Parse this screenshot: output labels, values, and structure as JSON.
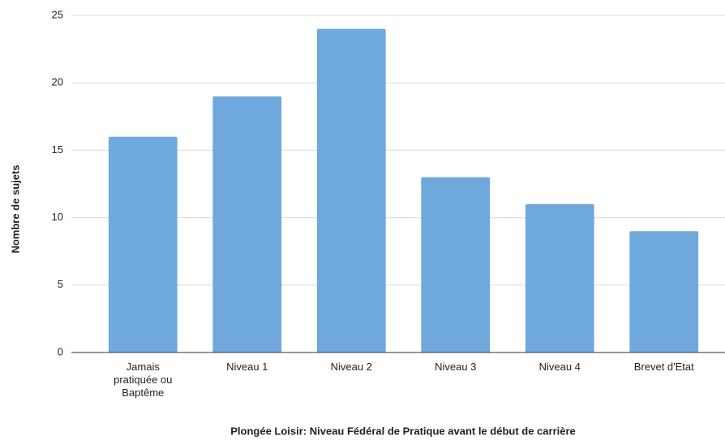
{
  "chart_data": {
    "type": "bar",
    "categories": [
      "Jamais pratiquée ou Baptême",
      "Niveau 1",
      "Niveau 2",
      "Niveau 3",
      "Niveau 4",
      "Brevet d'Etat"
    ],
    "values": [
      16,
      19,
      24,
      13,
      11,
      9
    ],
    "color": "#6fa8dc",
    "ylim": [
      0,
      25
    ],
    "yticks": [
      0,
      5,
      10,
      15,
      20,
      25
    ],
    "grid": true,
    "y_label": "Nombre de sujets",
    "x_label": "Plongée Loisir: Niveau Fédéral de Pratique avant le début de carrière"
  }
}
